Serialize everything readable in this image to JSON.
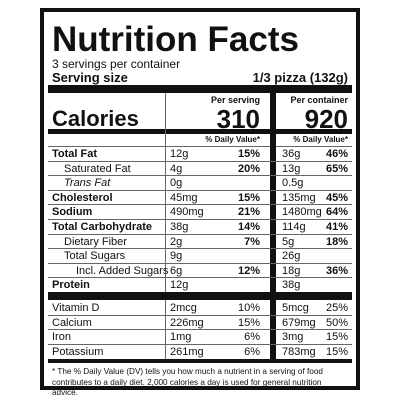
{
  "header": {
    "title": "Nutrition Facts",
    "servings": "3 servings per container",
    "serving_size_label": "Serving size",
    "serving_size_value": "1/3 pizza (132g)"
  },
  "calories_label": "Calories",
  "columns": [
    {
      "heading": "Per serving",
      "calories": "310",
      "dv_heading": "% Daily Value*"
    },
    {
      "heading": "Per container",
      "calories": "920",
      "dv_heading": "% Daily Value*"
    }
  ],
  "nutrients": [
    {
      "label": "Total Fat",
      "serving": "12g",
      "serving_dv": "15%",
      "container": "36g",
      "container_dv": "46%"
    },
    {
      "label": "Saturated Fat",
      "serving": "4g",
      "serving_dv": "20%",
      "container": "13g",
      "container_dv": "65%"
    },
    {
      "label": "Trans Fat",
      "serving": "0g",
      "container": "0.5g"
    },
    {
      "label": "Cholesterol",
      "serving": "45mg",
      "serving_dv": "15%",
      "container": "135mg",
      "container_dv": "45%"
    },
    {
      "label": "Sodium",
      "serving": "490mg",
      "serving_dv": "21%",
      "container": "1480mg",
      "container_dv": "64%"
    },
    {
      "label": "Total Carbohydrate",
      "serving": "38g",
      "serving_dv": "14%",
      "container": "114g",
      "container_dv": "41%"
    },
    {
      "label": "Dietary Fiber",
      "serving": "2g",
      "serving_dv": "7%",
      "container": "5g",
      "container_dv": "18%"
    },
    {
      "label": "Total Sugars",
      "serving": "9g",
      "container": "26g"
    },
    {
      "label": "Incl. Added Sugars",
      "serving": "6g",
      "serving_dv": "12%",
      "container": "18g",
      "container_dv": "36%"
    },
    {
      "label": "Protein",
      "serving": "12g",
      "container": "38g"
    }
  ],
  "vitamins": [
    {
      "label": "Vitamin D",
      "serving": "2mcg",
      "serving_dv": "10%",
      "container": "5mcg",
      "container_dv": "25%"
    },
    {
      "label": "Calcium",
      "serving": "226mg",
      "serving_dv": "15%",
      "container": "679mg",
      "container_dv": "50%"
    },
    {
      "label": "Iron",
      "serving": "1mg",
      "serving_dv": "6%",
      "container": "3mg",
      "container_dv": "15%"
    },
    {
      "label": "Potassium",
      "serving": "261mg",
      "serving_dv": "6%",
      "container": "783mg",
      "container_dv": "15%"
    }
  ],
  "footnote": "* The % Daily Value (DV) tells you how much a nutrient in a serving of food contributes to a daily diet. 2,000 calories a day is used for general nutrition advice."
}
